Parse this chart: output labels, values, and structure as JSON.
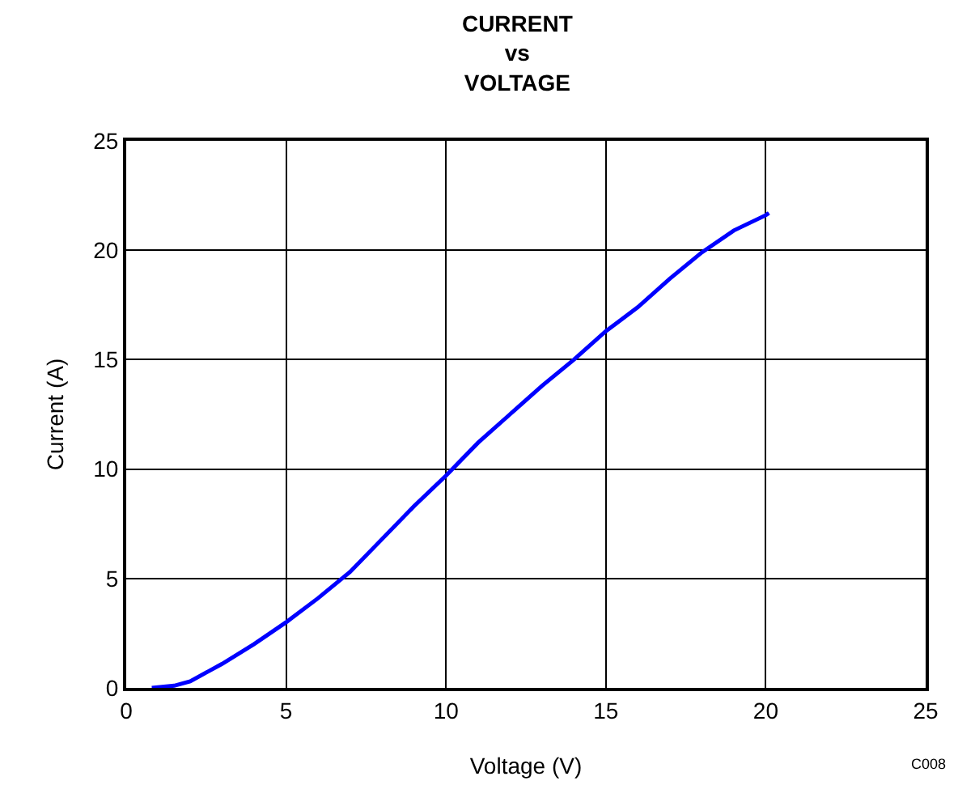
{
  "chart_data": {
    "type": "line",
    "title": "CURRENT\nvs\nVOLTAGE",
    "xlabel": "Voltage (V)",
    "ylabel": "Current (A)",
    "x": [
      0.8,
      1.5,
      2,
      3,
      4,
      5,
      6,
      7,
      8,
      9,
      10,
      11,
      12,
      13,
      14,
      15,
      16,
      17,
      18,
      19,
      20,
      20.1
    ],
    "series": [
      {
        "color": "#0000ff",
        "values": [
          0,
          0.1,
          0.3,
          1.1,
          2,
          3,
          4.1,
          5.3,
          6.8,
          8.3,
          9.7,
          11.2,
          12.5,
          13.8,
          15,
          16.3,
          17.4,
          18.7,
          19.9,
          20.9,
          21.6,
          21.7
        ]
      }
    ],
    "xlim": [
      0,
      25
    ],
    "xticks": [
      0,
      5,
      10,
      15,
      20,
      25
    ],
    "ylim": [
      0,
      25
    ],
    "yticks": [
      0,
      5,
      10,
      15,
      20,
      25
    ],
    "grid": true,
    "marker": "none",
    "line_style": "solid",
    "annotations": [
      "C008"
    ]
  }
}
